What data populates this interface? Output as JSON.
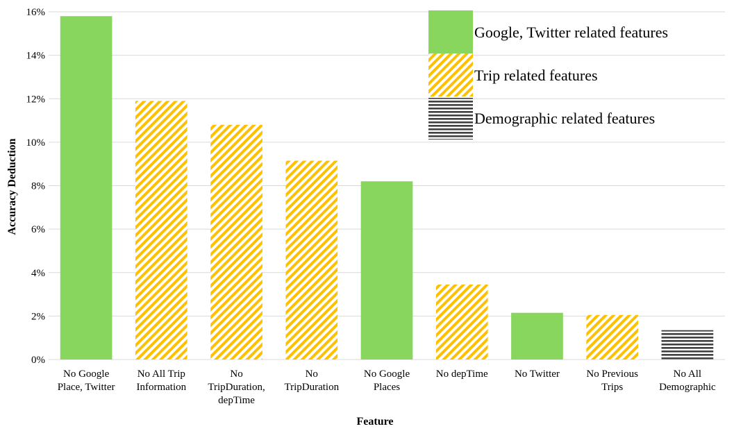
{
  "chart_data": {
    "type": "bar",
    "title": "",
    "xlabel": "Feature",
    "ylabel": "Accuracy Deduction",
    "ylim": [
      0,
      16
    ],
    "y_ticks": [
      "0%",
      "2%",
      "4%",
      "6%",
      "8%",
      "10%",
      "12%",
      "14%",
      "16%"
    ],
    "grid": true,
    "legend_position": "top-right",
    "categories": [
      [
        "No Google",
        "Place, Twitter"
      ],
      [
        "No All Trip",
        "Information"
      ],
      [
        "No",
        "TripDuration,",
        "depTime"
      ],
      [
        "No",
        "TripDuration"
      ],
      [
        "No Google",
        "Places"
      ],
      [
        "No depTime"
      ],
      [
        "No Twitter"
      ],
      [
        "No Previous",
        "Trips"
      ],
      [
        "No All",
        "Demographic"
      ]
    ],
    "values": [
      15.8,
      11.9,
      10.8,
      9.15,
      8.2,
      3.45,
      2.15,
      2.05,
      1.35
    ],
    "groups": [
      "google",
      "trip",
      "trip",
      "trip",
      "google",
      "trip",
      "google",
      "trip",
      "demo"
    ],
    "legend": [
      {
        "key": "google",
        "label": "Google, Twitter related features"
      },
      {
        "key": "trip",
        "label": "Trip related features"
      },
      {
        "key": "demo",
        "label": "Demographic related features"
      }
    ],
    "colors": {
      "google": "#88d65e",
      "trip_stripe": "#ffc000",
      "demo_stripe": "#404040",
      "grid": "#d9d9d9"
    }
  }
}
